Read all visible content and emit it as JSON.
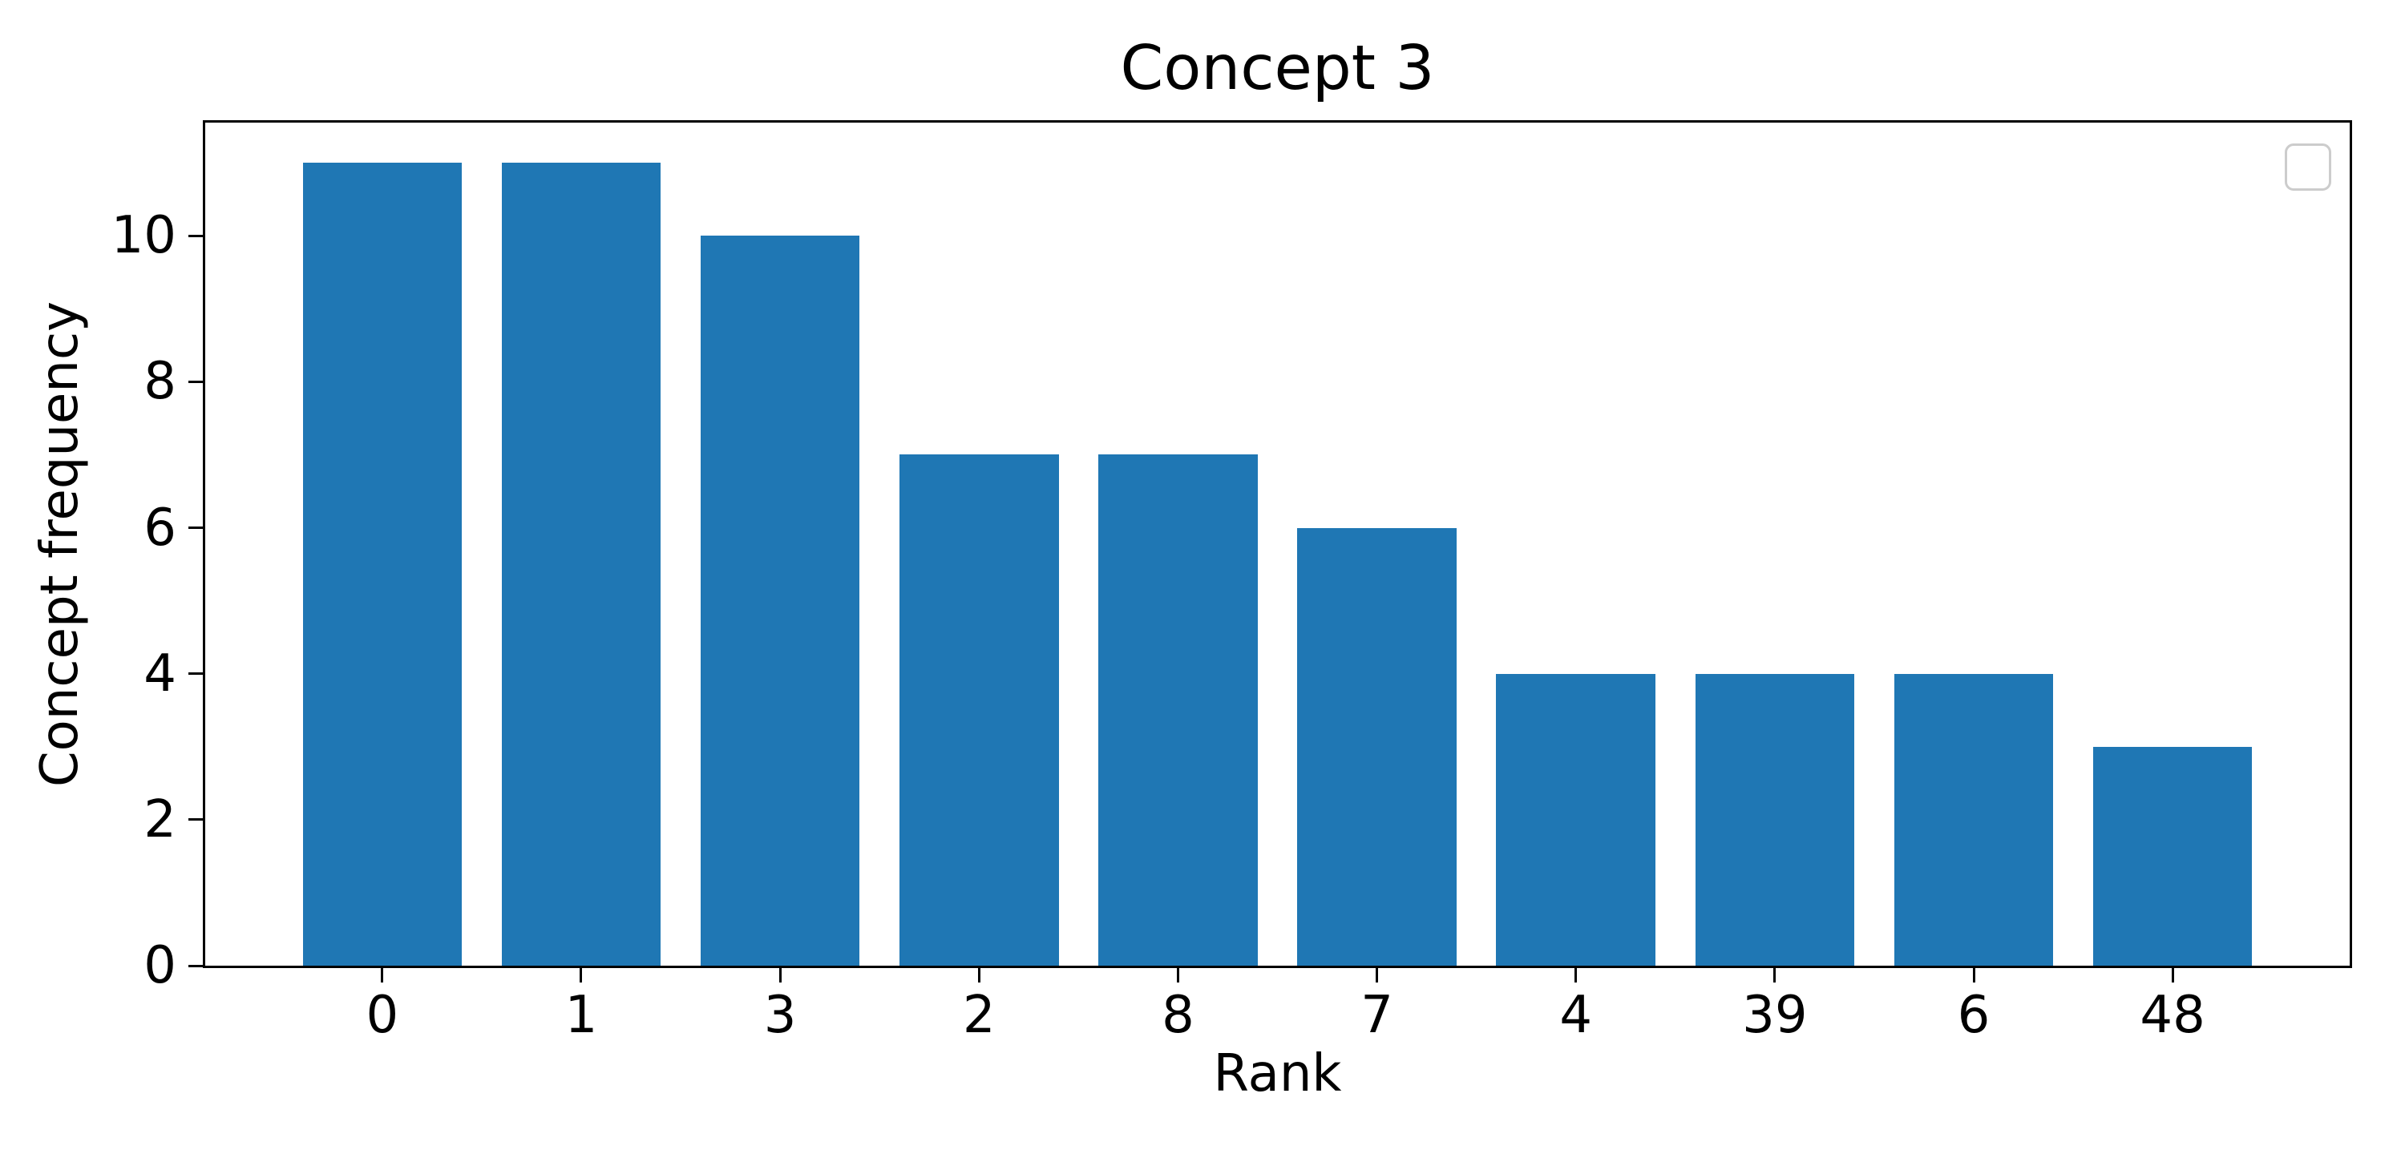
{
  "chart_data": {
    "type": "bar",
    "title": "Concept 3",
    "xlabel": "Rank",
    "ylabel": "Concept frequency",
    "categories": [
      "0",
      "1",
      "3",
      "2",
      "8",
      "7",
      "4",
      "39",
      "6",
      "48"
    ],
    "values": [
      11,
      11,
      10,
      7,
      7,
      6,
      4,
      4,
      4,
      3
    ],
    "yticks": [
      0,
      2,
      4,
      6,
      8,
      10
    ],
    "ylim": [
      0,
      11.55
    ],
    "xlim": [
      -0.89,
      9.89
    ],
    "bar_width_units": 0.8,
    "bar_color": "#1f77b4",
    "grid": false,
    "background_color": "#ffffff",
    "spine_color": "#000000",
    "legend": {
      "visible": true,
      "entries": [],
      "position": "upper right",
      "edge_color": "#cccccc"
    }
  }
}
